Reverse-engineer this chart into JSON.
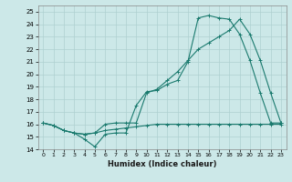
{
  "xlabel": "Humidex (Indice chaleur)",
  "xlim": [
    -0.5,
    23.5
  ],
  "ylim": [
    14,
    25.5
  ],
  "yticks": [
    14,
    15,
    16,
    17,
    18,
    19,
    20,
    21,
    22,
    23,
    24,
    25
  ],
  "xticks": [
    0,
    1,
    2,
    3,
    4,
    5,
    6,
    7,
    8,
    9,
    10,
    11,
    12,
    13,
    14,
    15,
    16,
    17,
    18,
    19,
    20,
    21,
    22,
    23
  ],
  "background_color": "#cce8e8",
  "grid_color": "#aed0d0",
  "line_color": "#1a7a6e",
  "line1_x": [
    0,
    1,
    2,
    3,
    4,
    5,
    6,
    7,
    8,
    9,
    10,
    11,
    12,
    13,
    14,
    15,
    16,
    17,
    18,
    19,
    20,
    21,
    22,
    23
  ],
  "line1_y": [
    16.1,
    15.9,
    15.5,
    15.3,
    14.8,
    14.2,
    15.2,
    15.3,
    15.3,
    17.5,
    18.6,
    18.7,
    19.2,
    19.5,
    21.0,
    24.5,
    24.7,
    24.5,
    24.4,
    23.2,
    21.1,
    18.5,
    16.1,
    16.1
  ],
  "line2_x": [
    0,
    1,
    2,
    3,
    4,
    5,
    6,
    7,
    8,
    9,
    10,
    11,
    12,
    13,
    14,
    15,
    16,
    17,
    18,
    19,
    20,
    21,
    22,
    23
  ],
  "line2_y": [
    16.1,
    15.9,
    15.5,
    15.3,
    15.2,
    15.3,
    16.0,
    16.1,
    16.1,
    16.1,
    18.5,
    18.8,
    19.5,
    20.2,
    21.1,
    22.0,
    22.5,
    23.0,
    23.5,
    24.4,
    23.2,
    21.1,
    18.5,
    16.1
  ],
  "line3_x": [
    0,
    1,
    2,
    3,
    4,
    5,
    6,
    7,
    8,
    9,
    10,
    11,
    12,
    13,
    14,
    15,
    16,
    17,
    18,
    19,
    20,
    21,
    22,
    23
  ],
  "line3_y": [
    16.1,
    15.9,
    15.5,
    15.3,
    15.2,
    15.3,
    15.5,
    15.6,
    15.7,
    15.8,
    15.9,
    16.0,
    16.0,
    16.0,
    16.0,
    16.0,
    16.0,
    16.0,
    16.0,
    16.0,
    16.0,
    16.0,
    16.0,
    16.0
  ]
}
